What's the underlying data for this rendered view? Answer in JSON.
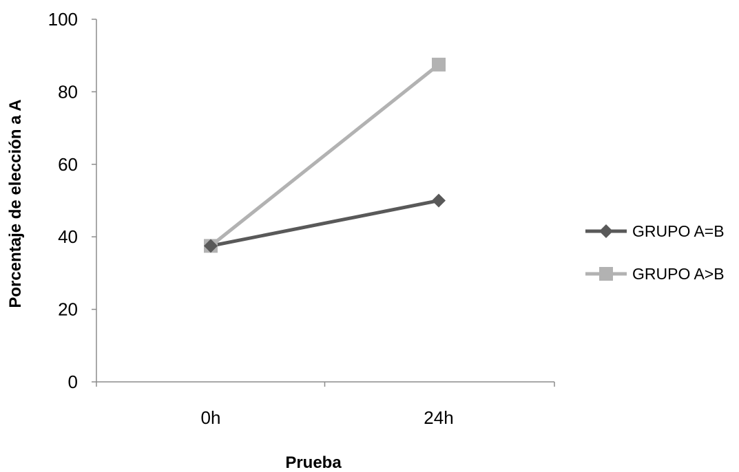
{
  "chart_data": {
    "type": "line",
    "title": "",
    "xlabel": "Prueba",
    "ylabel": "Porcentaje de elección a A",
    "categories": [
      "0h",
      "24h"
    ],
    "ylim": [
      0,
      100
    ],
    "yticks": [
      "0",
      "20",
      "40",
      "60",
      "80",
      "100"
    ],
    "grid": false,
    "legend_position": "right",
    "series": [
      {
        "name": "GRUPO A=B",
        "values": [
          37.5,
          50
        ],
        "color": "#595959",
        "marker": "diamond"
      },
      {
        "name": "GRUPO A>B",
        "values": [
          37.5,
          87.5
        ],
        "color": "#b2b2b2",
        "marker": "square"
      }
    ]
  }
}
